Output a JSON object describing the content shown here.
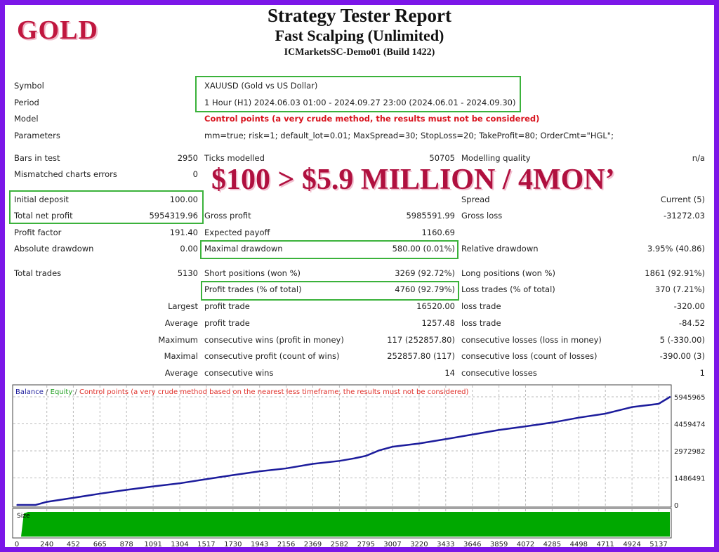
{
  "header": {
    "logo_text": "GOLD",
    "title": "Strategy Tester Report",
    "subtitle": "Fast Scalping (Unlimited)",
    "server": "ICMarketsSC-Demo01 (Build 1422)",
    "banner": "$100 > $5.9 MILLION / 4MON’"
  },
  "info": {
    "symbol": {
      "label": "Symbol",
      "value": "XAUUSD (Gold vs US Dollar)"
    },
    "period": {
      "label": "Period",
      "value": "1 Hour (H1) 2024.06.03 01:00 - 2024.09.27 23:00 (2024.06.01 - 2024.09.30)"
    },
    "model": {
      "label": "Model",
      "value": "Control points (a very crude method, the results must not be considered)"
    },
    "parameters": {
      "label": "Parameters",
      "value": "mm=true; risk=1; default_lot=0.01; MaxSpread=30; StopLoss=20; TakeProfit=80; OrderCmt=\"HGL\";"
    }
  },
  "stats": [
    {
      "l1": "Bars in test",
      "v1": "2950",
      "l2": "Ticks modelled",
      "v2": "50705",
      "l3": "Modelling quality",
      "v3": "n/a"
    },
    {
      "l1": "Mismatched charts errors",
      "v1": "0",
      "l2": "",
      "v2": "",
      "l3": "",
      "v3": ""
    },
    {
      "l1": "Initial deposit",
      "v1": "100.00",
      "l2": "",
      "v2": "",
      "l3": "Spread",
      "v3": "Current (5)"
    },
    {
      "l1": "Total net profit",
      "v1": "5954319.96",
      "l2": "Gross profit",
      "v2": "5985591.99",
      "l3": "Gross loss",
      "v3": "-31272.03"
    },
    {
      "l1": "Profit factor",
      "v1": "191.40",
      "l2": "Expected payoff",
      "v2": "1160.69",
      "l3": "",
      "v3": ""
    },
    {
      "l1": "Absolute drawdown",
      "v1": "0.00",
      "l2": "Maximal drawdown",
      "v2": "580.00 (0.01%)",
      "l3": "Relative drawdown",
      "v3": "3.95% (40.86)"
    },
    {
      "l1": "Total trades",
      "v1": "5130",
      "l2": "Short positions (won %)",
      "v2": "3269 (92.72%)",
      "l3": "Long positions (won %)",
      "v3": "1861 (92.91%)"
    },
    {
      "l1": "",
      "v1": "",
      "l2": "Profit trades (% of total)",
      "v2": "4760 (92.79%)",
      "l3": "Loss trades (% of total)",
      "v3": "370 (7.21%)"
    },
    {
      "l1": "",
      "v1": "Largest",
      "l2": "profit trade",
      "v2": "16520.00",
      "l3": "loss trade",
      "v3": "-320.00"
    },
    {
      "l1": "",
      "v1": "Average",
      "l2": "profit trade",
      "v2": "1257.48",
      "l3": "loss trade",
      "v3": "-84.52"
    },
    {
      "l1": "",
      "v1": "Maximum",
      "l2": "consecutive wins (profit in money)",
      "v2": "117 (252857.80)",
      "l3": "consecutive losses (loss in money)",
      "v3": "5 (-330.00)"
    },
    {
      "l1": "",
      "v1": "Maximal",
      "l2": "consecutive profit (count of wins)",
      "v2": "252857.80 (117)",
      "l3": "consecutive loss (count of losses)",
      "v3": "-390.00 (3)"
    },
    {
      "l1": "",
      "v1": "Average",
      "l2": "consecutive wins",
      "v2": "14",
      "l3": "consecutive losses",
      "v3": "1"
    }
  ],
  "chart_data": {
    "type": "line",
    "legend": {
      "balance": "Balance",
      "sep1": " / ",
      "equity": "Equity",
      "sep2": " / ",
      "note": "Control points (a very crude method based on the nearest less timeframe, the results must not be considered)"
    },
    "legend_placement": "top-left",
    "colors": {
      "balance": "#1c1c9c",
      "equity": "#22a022",
      "note": "#e0302a",
      "size": "#00a800"
    },
    "grid": true,
    "x_ticks": [
      "0",
      "240",
      "452",
      "665",
      "878",
      "1091",
      "1304",
      "1517",
      "1730",
      "1943",
      "2156",
      "2369",
      "2582",
      "2795",
      "3007",
      "3220",
      "3433",
      "3646",
      "3859",
      "4072",
      "4285",
      "4498",
      "4711",
      "4924",
      "5137"
    ],
    "y_ticks": [
      "0",
      "1486491",
      "2972982",
      "4459474",
      "5945965"
    ],
    "ylim": [
      0,
      5945965
    ],
    "xlim": [
      0,
      5230
    ],
    "series": [
      {
        "name": "Balance",
        "x": [
          0,
          150,
          240,
          452,
          665,
          878,
          1091,
          1304,
          1517,
          1730,
          1943,
          2156,
          2369,
          2582,
          2700,
          2795,
          2900,
          3007,
          3220,
          3433,
          3646,
          3859,
          4072,
          4285,
          4498,
          4711,
          4924,
          5137,
          5230
        ],
        "y": [
          100,
          100,
          170000,
          390000,
          620000,
          830000,
          1020000,
          1190000,
          1420000,
          1640000,
          1850000,
          2010000,
          2260000,
          2420000,
          2560000,
          2700000,
          3000000,
          3200000,
          3380000,
          3620000,
          3870000,
          4120000,
          4320000,
          4530000,
          4800000,
          5020000,
          5380000,
          5560000,
          5945965
        ]
      }
    ],
    "size_panel": {
      "label": "Size"
    }
  }
}
